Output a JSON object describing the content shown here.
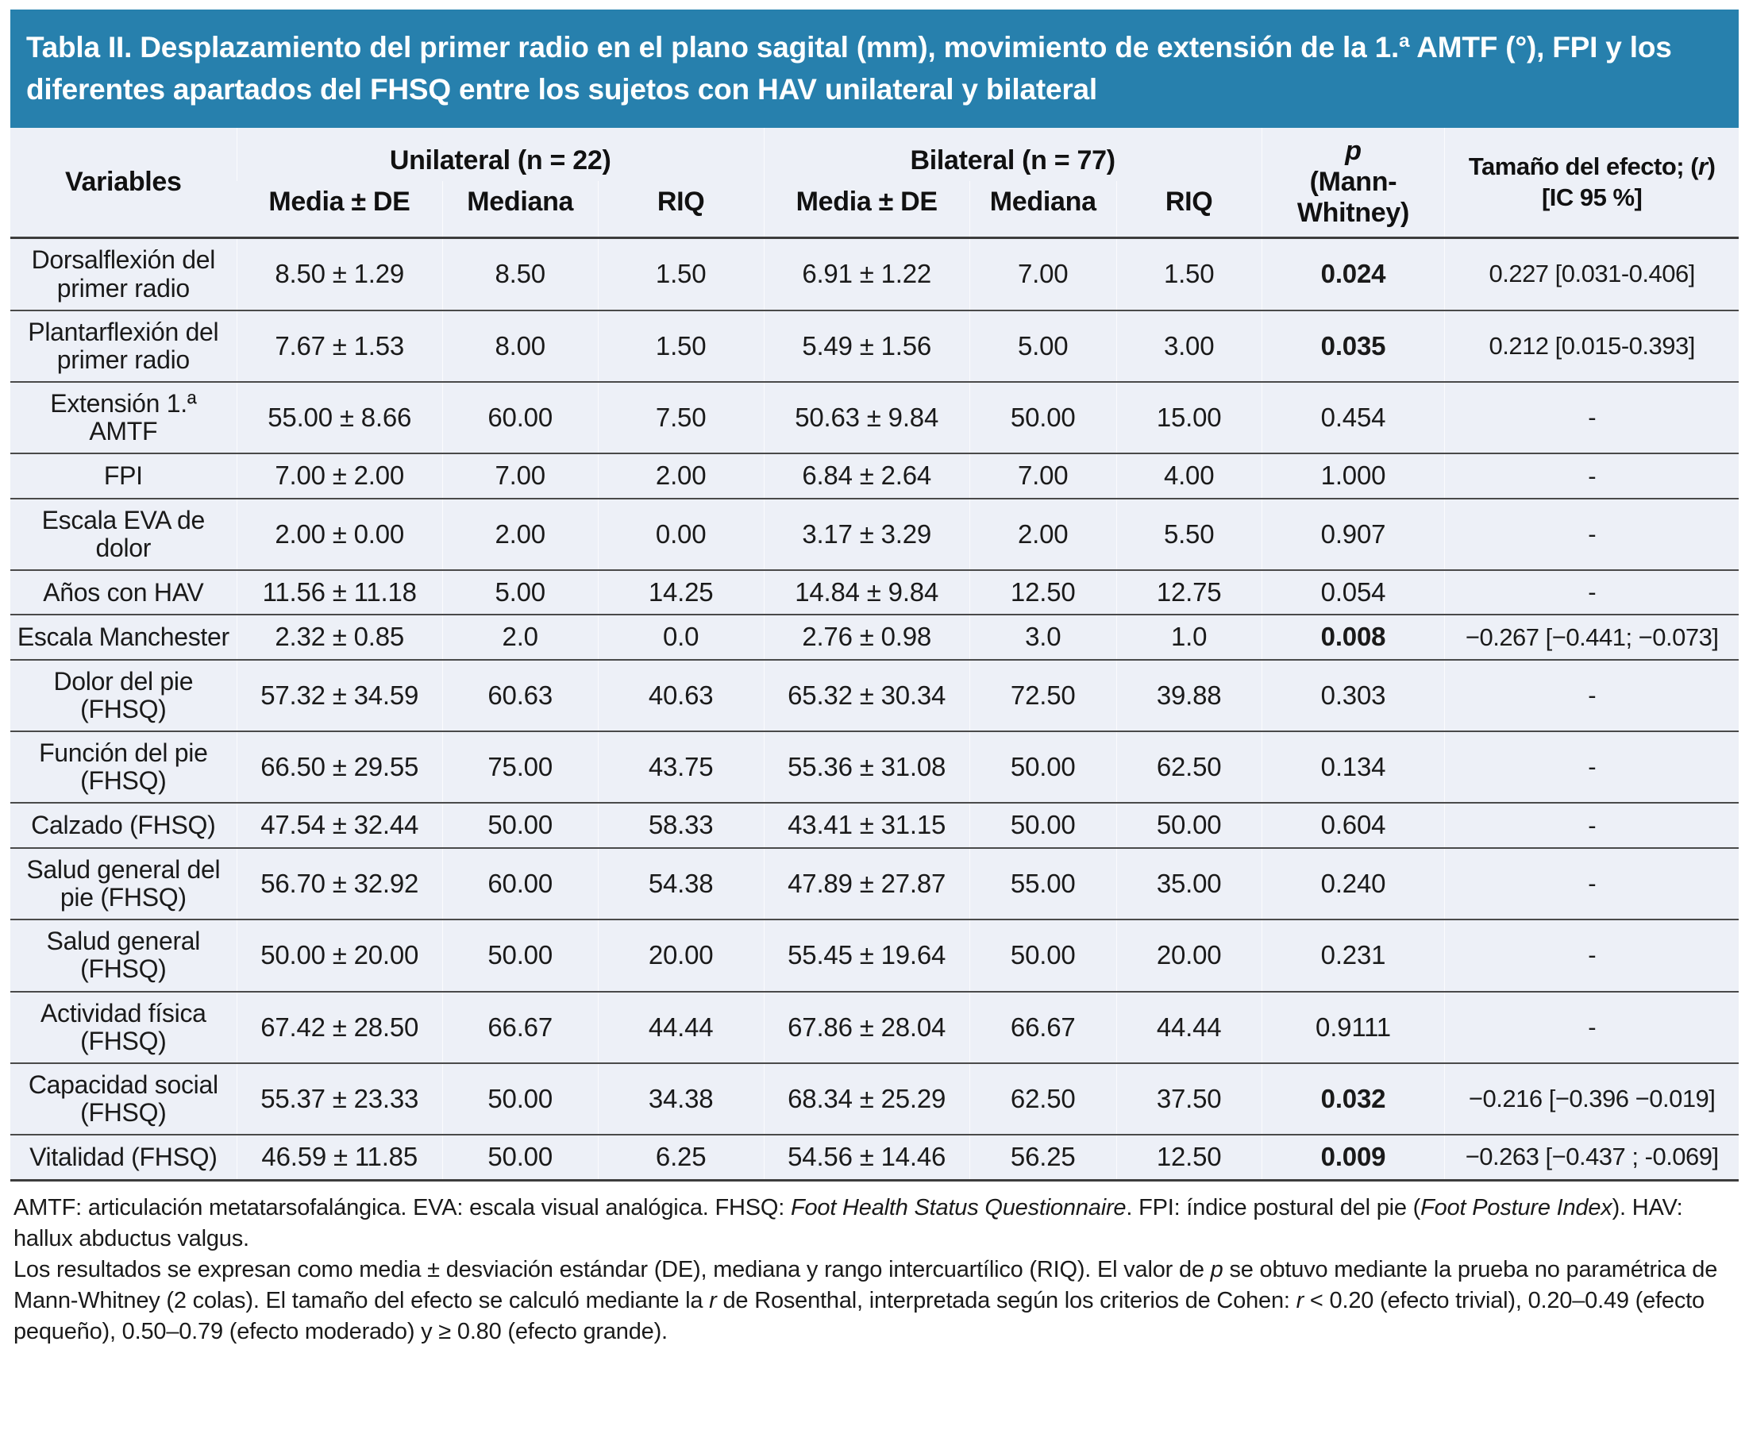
{
  "title": "Tabla II. Desplazamiento del primer radio en el plano sagital (mm), movimiento de extensión de la 1.ª AMTF (°), FPI y los diferentes apartados del FHSQ entre los sujetos con HAV unilateral y bilateral",
  "colors": {
    "header_bg": "#2780ad",
    "body_bg": "#edf0f7",
    "line": "#4a4a4a",
    "text": "#1a1a1a"
  },
  "columns": {
    "variables": "Variables",
    "unilateral": "Unilateral (n = 22)",
    "bilateral": "Bilateral (n = 77)",
    "sub_media": "Media ± DE",
    "sub_mediana": "Mediana",
    "sub_riq": "RIQ",
    "p_symbol": "p",
    "p_test": "(Mann-Whitney)",
    "effect_prefix": "Tamaño del efecto; (",
    "effect_r": "r",
    "effect_suffix": ")",
    "effect_ci": "[IC 95 %]"
  },
  "rows": [
    {
      "label": "Dorsalflexión del primer radio",
      "uni": {
        "media_de": "8.50 ± 1.29",
        "mediana": "8.50",
        "riq": "1.50"
      },
      "bil": {
        "media_de": "6.91 ± 1.22",
        "mediana": "7.00",
        "riq": "1.50"
      },
      "p": "0.024",
      "p_bold": true,
      "efecto": "0.227 [0.031-0.406]"
    },
    {
      "label": "Plantarflexión del primer radio",
      "uni": {
        "media_de": "7.67 ± 1.53",
        "mediana": "8.00",
        "riq": "1.50"
      },
      "bil": {
        "media_de": "5.49 ± 1.56",
        "mediana": "5.00",
        "riq": "3.00"
      },
      "p": "0.035",
      "p_bold": true,
      "efecto": "0.212 [0.015-0.393]"
    },
    {
      "label": "Extensión 1.ª AMTF",
      "uni": {
        "media_de": "55.00 ± 8.66",
        "mediana": "60.00",
        "riq": "7.50"
      },
      "bil": {
        "media_de": "50.63 ± 9.84",
        "mediana": "50.00",
        "riq": "15.00"
      },
      "p": "0.454",
      "p_bold": false,
      "efecto": "-"
    },
    {
      "label": "FPI",
      "uni": {
        "media_de": "7.00 ± 2.00",
        "mediana": "7.00",
        "riq": "2.00"
      },
      "bil": {
        "media_de": "6.84 ± 2.64",
        "mediana": "7.00",
        "riq": "4.00"
      },
      "p": "1.000",
      "p_bold": false,
      "efecto": "-"
    },
    {
      "label": "Escala EVA de dolor",
      "uni": {
        "media_de": "2.00 ± 0.00",
        "mediana": "2.00",
        "riq": "0.00"
      },
      "bil": {
        "media_de": "3.17 ± 3.29",
        "mediana": "2.00",
        "riq": "5.50"
      },
      "p": "0.907",
      "p_bold": false,
      "efecto": "-"
    },
    {
      "label": "Años con HAV",
      "uni": {
        "media_de": "11.56 ± 11.18",
        "mediana": "5.00",
        "riq": "14.25"
      },
      "bil": {
        "media_de": "14.84 ± 9.84",
        "mediana": "12.50",
        "riq": "12.75"
      },
      "p": "0.054",
      "p_bold": false,
      "efecto": "-"
    },
    {
      "label": "Escala Manchester",
      "uni": {
        "media_de": "2.32 ± 0.85",
        "mediana": "2.0",
        "riq": "0.0"
      },
      "bil": {
        "media_de": "2.76 ± 0.98",
        "mediana": "3.0",
        "riq": "1.0"
      },
      "p": "0.008",
      "p_bold": true,
      "efecto": "−0.267 [−0.441; −0.073]"
    },
    {
      "label": "Dolor del pie (FHSQ)",
      "uni": {
        "media_de": "57.32 ± 34.59",
        "mediana": "60.63",
        "riq": "40.63"
      },
      "bil": {
        "media_de": "65.32 ± 30.34",
        "mediana": "72.50",
        "riq": "39.88"
      },
      "p": "0.303",
      "p_bold": false,
      "efecto": "-"
    },
    {
      "label": "Función del pie (FHSQ)",
      "uni": {
        "media_de": "66.50 ± 29.55",
        "mediana": "75.00",
        "riq": "43.75"
      },
      "bil": {
        "media_de": "55.36 ± 31.08",
        "mediana": "50.00",
        "riq": "62.50"
      },
      "p": "0.134",
      "p_bold": false,
      "efecto": "-"
    },
    {
      "label": "Calzado (FHSQ)",
      "uni": {
        "media_de": "47.54 ± 32.44",
        "mediana": "50.00",
        "riq": "58.33"
      },
      "bil": {
        "media_de": "43.41 ± 31.15",
        "mediana": "50.00",
        "riq": "50.00"
      },
      "p": "0.604",
      "p_bold": false,
      "efecto": "-"
    },
    {
      "label": "Salud general del pie (FHSQ)",
      "uni": {
        "media_de": "56.70 ± 32.92",
        "mediana": "60.00",
        "riq": "54.38"
      },
      "bil": {
        "media_de": "47.89 ± 27.87",
        "mediana": "55.00",
        "riq": "35.00"
      },
      "p": "0.240",
      "p_bold": false,
      "efecto": "-"
    },
    {
      "label": "Salud general (FHSQ)",
      "uni": {
        "media_de": "50.00 ± 20.00",
        "mediana": "50.00",
        "riq": "20.00"
      },
      "bil": {
        "media_de": "55.45 ± 19.64",
        "mediana": "50.00",
        "riq": "20.00"
      },
      "p": "0.231",
      "p_bold": false,
      "efecto": "-"
    },
    {
      "label": "Actividad física (FHSQ)",
      "uni": {
        "media_de": "67.42 ± 28.50",
        "mediana": "66.67",
        "riq": "44.44"
      },
      "bil": {
        "media_de": "67.86 ± 28.04",
        "mediana": "66.67",
        "riq": "44.44"
      },
      "p": "0.9111",
      "p_bold": false,
      "efecto": "-"
    },
    {
      "label": "Capacidad social (FHSQ)",
      "uni": {
        "media_de": "55.37 ± 23.33",
        "mediana": "50.00",
        "riq": "34.38"
      },
      "bil": {
        "media_de": "68.34 ± 25.29",
        "mediana": "62.50",
        "riq": "37.50"
      },
      "p": "0.032",
      "p_bold": true,
      "efecto": "−0.216 [−0.396 −0.019]"
    },
    {
      "label": "Vitalidad (FHSQ)",
      "uni": {
        "media_de": "46.59 ± 11.85",
        "mediana": "50.00",
        "riq": "6.25"
      },
      "bil": {
        "media_de": "54.56 ± 14.46",
        "mediana": "56.25",
        "riq": "12.50"
      },
      "p": "0.009",
      "p_bold": true,
      "efecto": "−0.263 [−0.437 ; -0.069]"
    }
  ],
  "footnotes": [
    [
      {
        "t": "AMTF: articulación metatarsofalángica. EVA: escala visual analógica. FHSQ: "
      },
      {
        "t": "Foot Health Status Questionnaire",
        "i": true
      },
      {
        "t": ". FPI: índice postural del pie ("
      },
      {
        "t": "Foot Posture Index",
        "i": true
      },
      {
        "t": "). HAV: hallux abductus valgus."
      }
    ],
    [
      {
        "t": "Los resultados se expresan como media ± desviación estándar (DE), mediana y rango intercuartílico (RIQ). El valor de "
      },
      {
        "t": "p",
        "i": true
      },
      {
        "t": " se obtuvo mediante la prueba no paramétrica de Mann-Whitney (2 colas). El tamaño del efecto se calculó mediante la "
      },
      {
        "t": "r",
        "i": true
      },
      {
        "t": " de Rosenthal, interpretada según los criterios de Cohen: "
      },
      {
        "t": "r",
        "i": true
      },
      {
        "t": " < 0.20 (efecto trivial), 0.20–0.49 (efecto pequeño), 0.50–0.79 (efecto moderado) y ≥ 0.80 (efecto grande)."
      }
    ]
  ]
}
